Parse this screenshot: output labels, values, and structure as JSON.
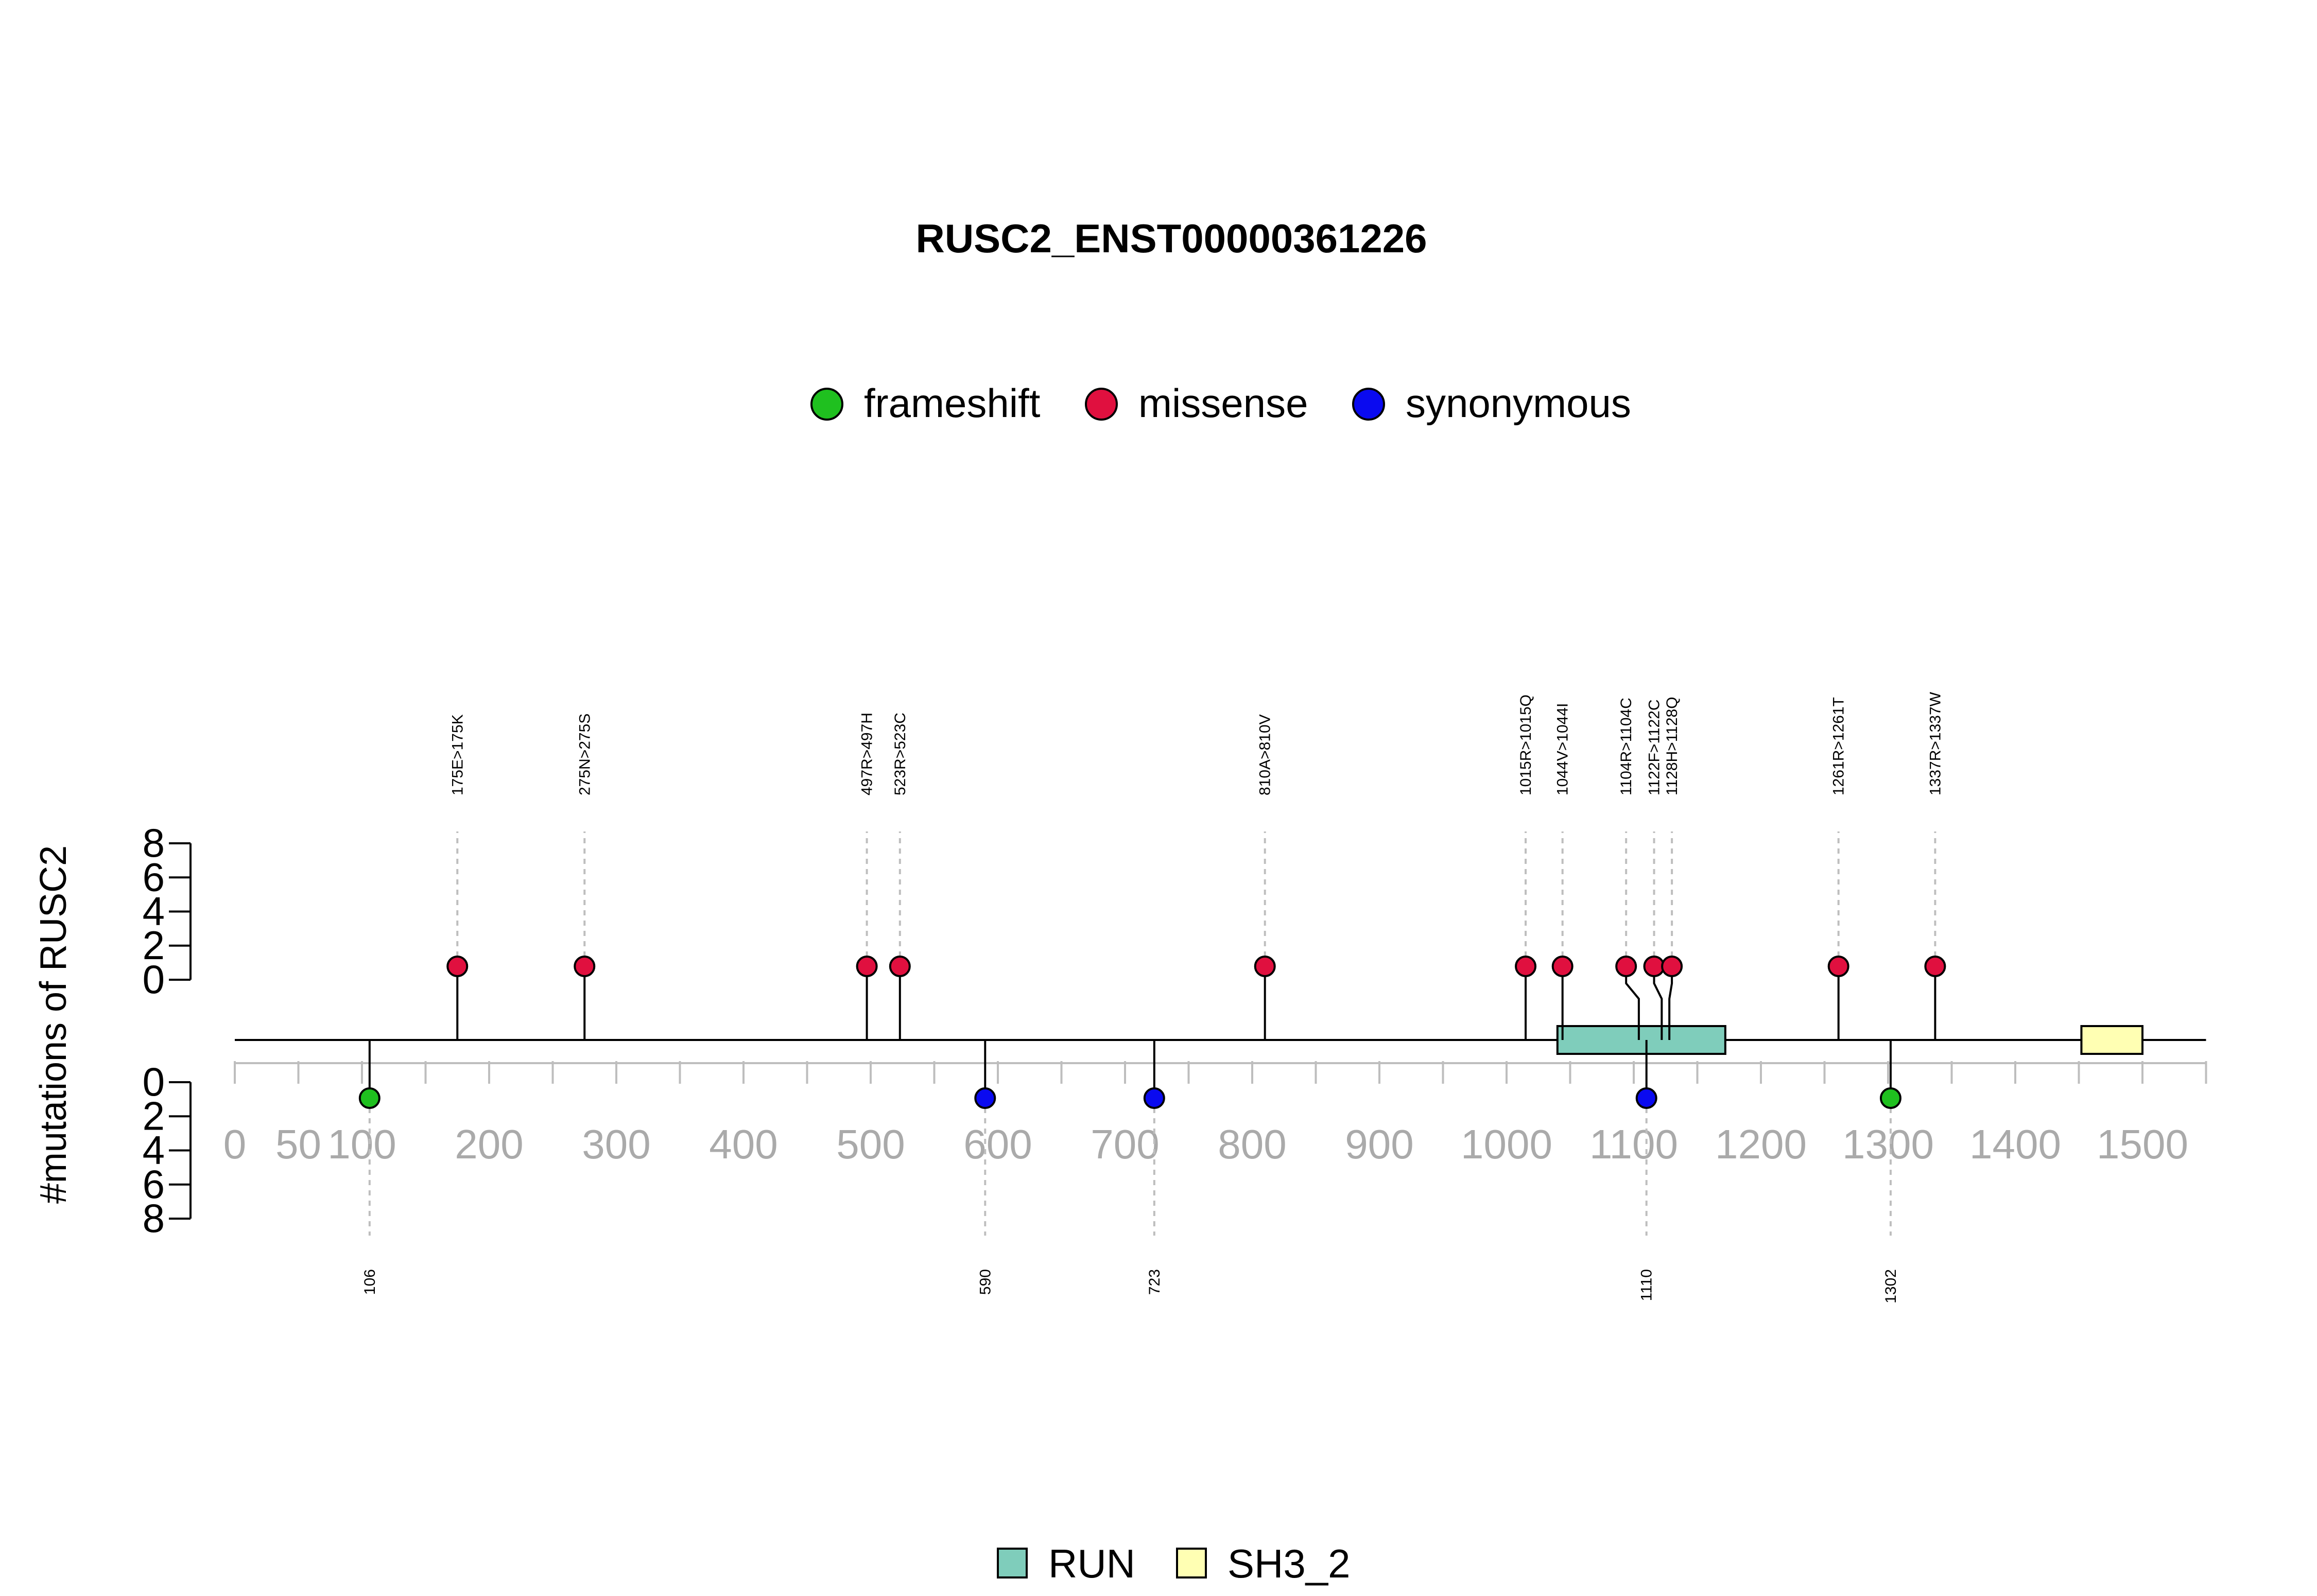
{
  "chart_data": {
    "type": "lollipop",
    "title": "RUSC2_ENST00000361226",
    "ylabel": "#mutations of RUSC2",
    "protein_length": 1516,
    "xlim": [
      0,
      1550
    ],
    "x_ticks": [
      0,
      50,
      100,
      200,
      300,
      400,
      500,
      600,
      700,
      800,
      900,
      1000,
      1100,
      1200,
      1300,
      1400,
      1500
    ],
    "y_ticks": [
      0,
      2,
      4,
      6,
      8
    ],
    "ylim": [
      0,
      8
    ],
    "legend": {
      "placement": "top-center",
      "items": [
        {
          "label": "frameshift",
          "color": "#1FC01F"
        },
        {
          "label": "missense",
          "color": "#E0103F"
        },
        {
          "label": "synonymous",
          "color": "#0A0AF0"
        }
      ]
    },
    "domain_legend": {
      "placement": "bottom-center",
      "items": [
        {
          "label": "RUN",
          "color": "#7FCDBB"
        },
        {
          "label": "SH3_2",
          "color": "#FFFFB3"
        }
      ]
    },
    "domains": [
      {
        "name": "RUN",
        "start": 1040,
        "end": 1172,
        "color": "#7FCDBB"
      },
      {
        "name": "SH3_2",
        "start": 1452,
        "end": 1500,
        "color": "#FFFFB3"
      }
    ],
    "mutations_top": [
      {
        "label": "175E>175K",
        "position": 175,
        "count": 1,
        "type": "missense"
      },
      {
        "label": "275N>275S",
        "position": 275,
        "count": 1,
        "type": "missense"
      },
      {
        "label": "497R>497H",
        "position": 497,
        "count": 1,
        "type": "missense"
      },
      {
        "label": "523R>523C",
        "position": 523,
        "count": 1,
        "type": "missense"
      },
      {
        "label": "810A>810V",
        "position": 810,
        "count": 1,
        "type": "missense"
      },
      {
        "label": "1015R>1015Q",
        "position": 1015,
        "count": 1,
        "type": "missense"
      },
      {
        "label": "1044V>1044I",
        "position": 1044,
        "count": 1,
        "type": "missense"
      },
      {
        "label": "1104R>1104C",
        "position": 1104,
        "count": 1,
        "type": "missense"
      },
      {
        "label": "1122F>1122C",
        "position": 1122,
        "count": 1,
        "type": "missense"
      },
      {
        "label": "1128H>1128Q",
        "position": 1128,
        "count": 1,
        "type": "missense"
      },
      {
        "label": "1261R>1261T",
        "position": 1261,
        "count": 1,
        "type": "missense"
      },
      {
        "label": "1337R>1337W",
        "position": 1337,
        "count": 1,
        "type": "missense"
      }
    ],
    "mutations_bottom": [
      {
        "label": "106",
        "position": 106,
        "count": 1,
        "type": "frameshift"
      },
      {
        "label": "590",
        "position": 590,
        "count": 1,
        "type": "synonymous"
      },
      {
        "label": "723",
        "position": 723,
        "count": 1,
        "type": "synonymous"
      },
      {
        "label": "1110",
        "position": 1110,
        "count": 1,
        "type": "synonymous"
      },
      {
        "label": "1302",
        "position": 1302,
        "count": 1,
        "type": "frameshift"
      }
    ]
  }
}
